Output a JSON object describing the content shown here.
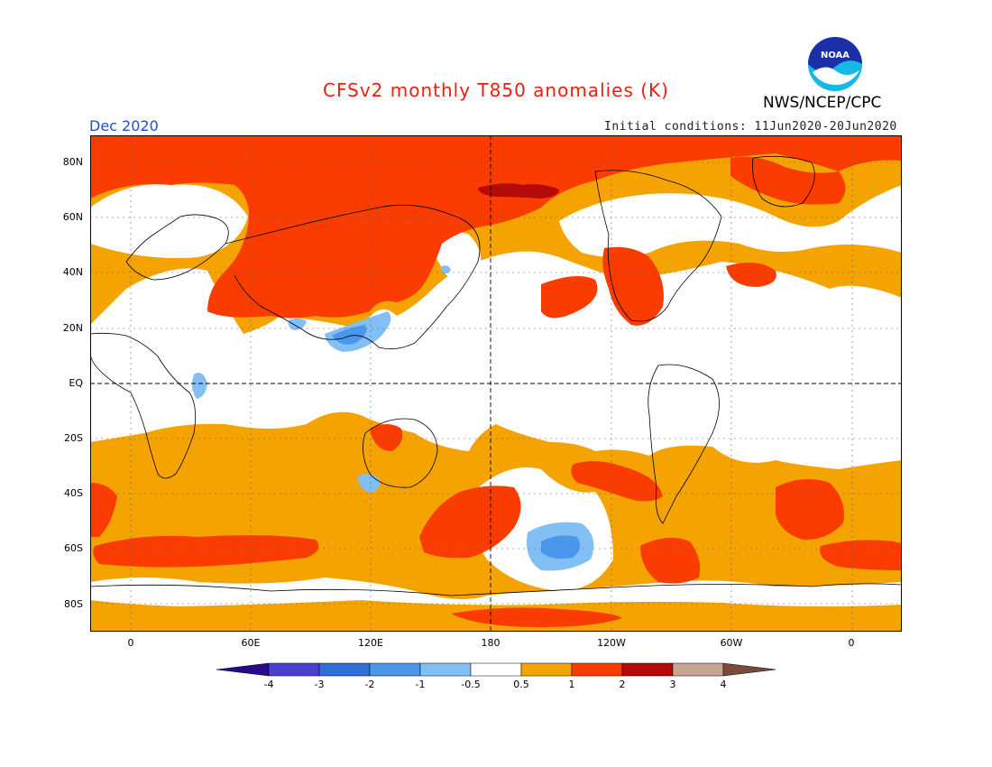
{
  "header": {
    "title": "CFSv2 monthly T850 anomalies (K)",
    "organization": "NWS/NCEP/CPC",
    "valid_month": "Dec 2020",
    "initial_conditions": "Initial conditions: 11Jun2020-20Jun2020",
    "logo_text": "NOAA"
  },
  "colors": {
    "title": "#e8200e",
    "valid_month": "#1f4ed8",
    "land_outline": "#000000",
    "neutral": "#ffffff",
    "light_orange": "#f5a300",
    "red_orange": "#fa3c00",
    "dark_red": "#b40a0a",
    "light_blue": "#78b9f5",
    "mid_blue": "#3c8cf0"
  },
  "map": {
    "latitude_labels": [
      "80N",
      "60N",
      "40N",
      "20N",
      "EQ",
      "20S",
      "40S",
      "60S",
      "80S"
    ],
    "longitude_labels": [
      "0",
      "60E",
      "120E",
      "180",
      "120W",
      "60W",
      "0"
    ]
  },
  "colorbar": {
    "labels": [
      "-4",
      "-3",
      "-2",
      "-1",
      "-0.5",
      "0.5",
      "1",
      "2",
      "3",
      "4"
    ],
    "colors": [
      "#2a0a8c",
      "#4b3fd2",
      "#2f6fd6",
      "#4a98ee",
      "#82bff4",
      "#ffffff",
      "#f5a300",
      "#fa3c00",
      "#b40a0a",
      "#c8a493",
      "#7a4a3a"
    ]
  }
}
